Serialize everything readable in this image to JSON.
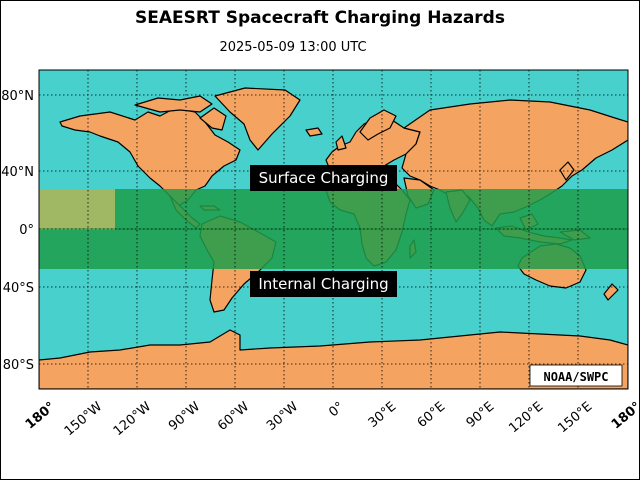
{
  "header": {
    "title": "SEAESRT Spacecraft Charging Hazards",
    "timestamp": "2025-05-09 13:00 UTC"
  },
  "map": {
    "lat_labels": [
      "80°N",
      "40°N",
      "0°",
      "40°S",
      "80°S"
    ],
    "lon_labels": [
      "180°",
      "150°W",
      "120°W",
      "90°W",
      "60°W",
      "30°W",
      "0°",
      "30°E",
      "60°E",
      "90°E",
      "120°E",
      "150°E",
      "180°"
    ],
    "colors": {
      "ocean": "#48d1cc",
      "land": "#f4a460",
      "hazard_band": "#1e9e4a",
      "surface_highlight": "#a8b864"
    },
    "hazard_band": {
      "lat_north": 28,
      "lat_south": -28
    },
    "surface_highlight": {
      "lon_west": -180,
      "lon_east": -150,
      "lat_north": 28,
      "lat_south": 0
    },
    "labels": {
      "surface": "Surface Charging",
      "internal": "Internal Charging"
    },
    "credit": "NOAA/SWPC"
  }
}
